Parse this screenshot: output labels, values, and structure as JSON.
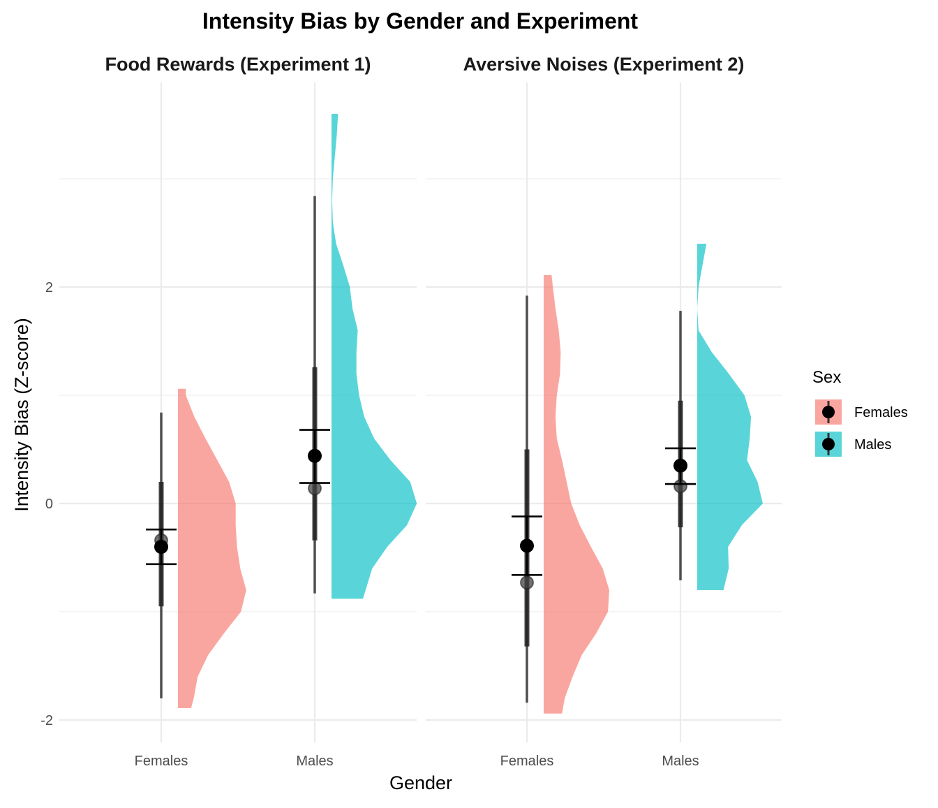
{
  "chart_data": {
    "type": "raincloud",
    "title": "Intensity Bias by Gender and Experiment",
    "xlabel": "Gender",
    "ylabel": "Intensity Bias (Z-score)",
    "ylim": [
      -2.2,
      3.85
    ],
    "y_ticks": [
      -2,
      0,
      2
    ],
    "categories": [
      "Females",
      "Males"
    ],
    "grid": true,
    "legend": {
      "title": "Sex",
      "position": "right",
      "entries": [
        {
          "label": "Females",
          "color": "#F8766D"
        },
        {
          "label": "Males",
          "color": "#00BFC4"
        }
      ]
    },
    "panels": [
      {
        "title": "Food Rewards (Experiment 1)",
        "groups": [
          {
            "category": "Females",
            "color": "#F8766D",
            "mean": -0.4,
            "ci_low": -0.56,
            "ci_high": -0.24,
            "median": -0.34,
            "box_low": -0.95,
            "box_high": 0.2,
            "whisker_low": -1.8,
            "whisker_high": 0.84,
            "density_y": [
              -1.89,
              -1.8,
              -1.6,
              -1.4,
              -1.2,
              -1.0,
              -0.8,
              -0.6,
              -0.4,
              -0.2,
              0.0,
              0.2,
              0.4,
              0.6,
              0.8,
              1.0,
              1.06
            ],
            "density_w": [
              0.2,
              0.24,
              0.3,
              0.46,
              0.7,
              0.96,
              1.04,
              0.95,
              0.9,
              0.88,
              0.88,
              0.78,
              0.6,
              0.42,
              0.25,
              0.12,
              0.12
            ]
          },
          {
            "category": "Males",
            "color": "#00BFC4",
            "mean": 0.44,
            "ci_low": 0.19,
            "ci_high": 0.68,
            "median": 0.14,
            "box_low": -0.34,
            "box_high": 1.26,
            "whisker_low": -0.83,
            "whisker_high": 2.84,
            "density_y": [
              -0.88,
              -0.6,
              -0.4,
              -0.2,
              0.0,
              0.2,
              0.4,
              0.6,
              0.8,
              1.0,
              1.2,
              1.4,
              1.6,
              1.8,
              2.0,
              2.2,
              2.4,
              2.6,
              2.8,
              3.0,
              3.2,
              3.4,
              3.6
            ],
            "density_w": [
              0.48,
              0.62,
              0.85,
              1.15,
              1.3,
              1.2,
              0.9,
              0.65,
              0.5,
              0.42,
              0.38,
              0.38,
              0.4,
              0.32,
              0.28,
              0.18,
              0.07,
              0.02,
              0.01,
              0.02,
              0.05,
              0.08,
              0.1
            ]
          }
        ]
      },
      {
        "title": "Aversive Noises (Experiment 2)",
        "groups": [
          {
            "category": "Females",
            "color": "#F8766D",
            "mean": -0.39,
            "ci_low": -0.66,
            "ci_high": -0.12,
            "median": -0.73,
            "box_low": -1.32,
            "box_high": 0.5,
            "whisker_low": -1.84,
            "whisker_high": 1.92,
            "density_y": [
              -1.94,
              -1.8,
              -1.6,
              -1.4,
              -1.2,
              -1.0,
              -0.8,
              -0.6,
              -0.4,
              -0.2,
              0.0,
              0.2,
              0.4,
              0.6,
              0.8,
              1.0,
              1.2,
              1.4,
              1.6,
              1.8,
              2.0,
              2.11
            ],
            "density_w": [
              0.28,
              0.32,
              0.44,
              0.58,
              0.8,
              0.98,
              1.0,
              0.9,
              0.72,
              0.55,
              0.42,
              0.35,
              0.28,
              0.2,
              0.18,
              0.2,
              0.25,
              0.26,
              0.23,
              0.18,
              0.14,
              0.12
            ]
          },
          {
            "category": "Males",
            "color": "#00BFC4",
            "mean": 0.35,
            "ci_low": 0.18,
            "ci_high": 0.51,
            "median": 0.16,
            "box_low": -0.22,
            "box_high": 0.95,
            "whisker_low": -0.71,
            "whisker_high": 1.78,
            "density_y": [
              -0.8,
              -0.6,
              -0.4,
              -0.2,
              0.0,
              0.2,
              0.4,
              0.6,
              0.8,
              1.0,
              1.2,
              1.4,
              1.6,
              1.8,
              2.0,
              2.2,
              2.4
            ],
            "density_w": [
              0.4,
              0.48,
              0.47,
              0.68,
              1.0,
              0.92,
              0.76,
              0.8,
              0.82,
              0.72,
              0.48,
              0.22,
              0.02,
              0.0,
              0.02,
              0.08,
              0.14
            ]
          }
        ]
      }
    ]
  }
}
